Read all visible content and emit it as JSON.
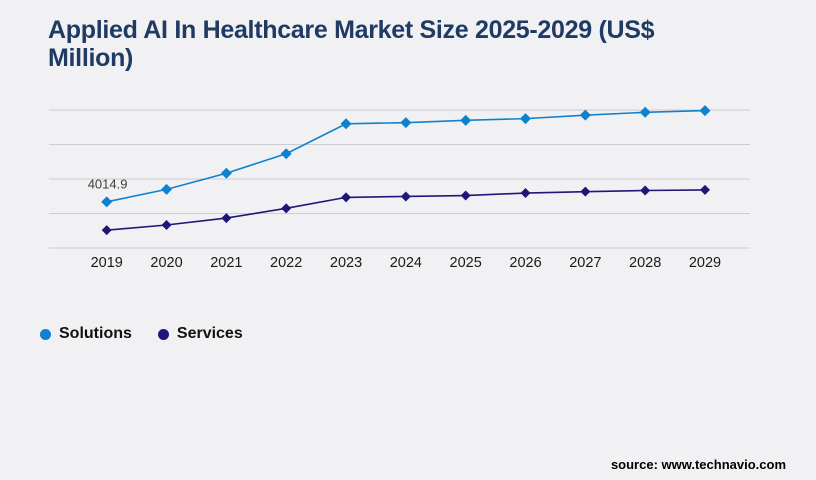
{
  "title": {
    "line1": "Applied AI In Healthcare Market Size 2025-2029 (US$",
    "line2": "Million)"
  },
  "source": "source: www.technavio.com",
  "colors": {
    "title": "#1f3a63",
    "background": "#f1f1f4",
    "gridline": "#cdcdd0",
    "solutions": "#0f81cd",
    "services": "#1e1778",
    "annotation": "#404040",
    "axis_label": "#1a1a1a"
  },
  "legend": {
    "items": [
      {
        "label": "Solutions",
        "color": "#0f81cd"
      },
      {
        "label": "Services",
        "color": "#1e1778"
      }
    ]
  },
  "chart_data": {
    "type": "line",
    "title": "Applied AI In Healthcare Market Size 2025-2029 (US$ Million)",
    "categories": [
      "2019",
      "2020",
      "2021",
      "2022",
      "2023",
      "2024",
      "2025",
      "2026",
      "2027",
      "2028",
      "2029"
    ],
    "series": [
      {
        "name": "Solutions",
        "color": "#0f81cd",
        "marker": "diamond",
        "values": [
          4014.9,
          5100,
          6500,
          8200,
          10800,
          10900,
          11100,
          11250,
          11550,
          11800,
          11950
        ]
      },
      {
        "name": "Services",
        "color": "#1e1778",
        "marker": "diamond",
        "values": [
          1550,
          2000,
          2600,
          3450,
          4400,
          4480,
          4560,
          4780,
          4900,
          5000,
          5050
        ]
      }
    ],
    "ylim": [
      0,
      12000
    ],
    "gridline_count": 5,
    "grid": true,
    "y_axis_labels_visible": false,
    "legend_position": "bottom-left",
    "annotations": [
      {
        "series": "Solutions",
        "category": "2019",
        "text": "4014.9"
      }
    ]
  }
}
